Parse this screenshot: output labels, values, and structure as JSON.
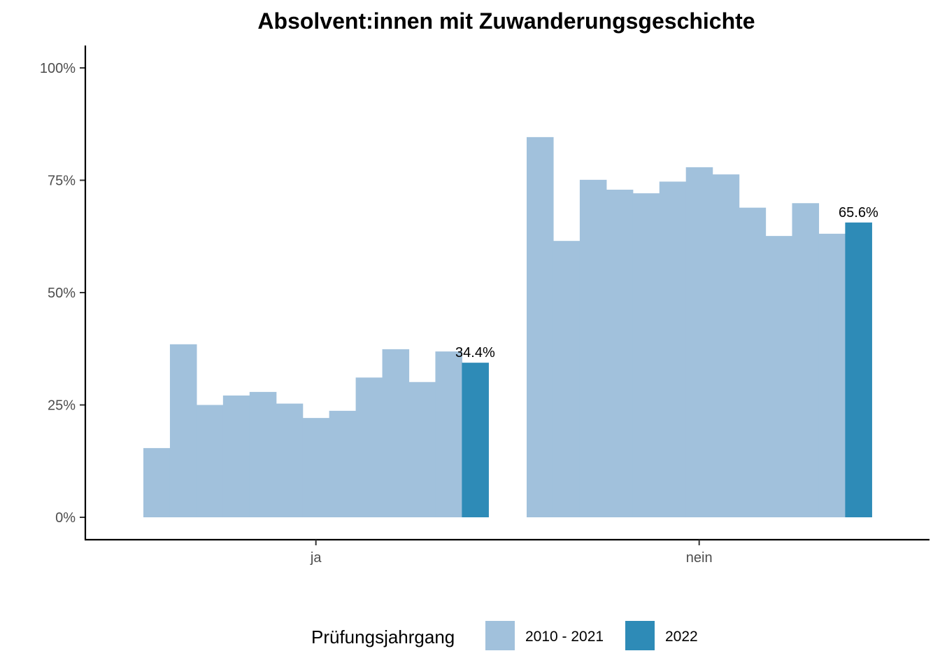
{
  "chart_data": {
    "type": "bar",
    "title": "Absolvent:innen mit Zuwanderungsgeschichte",
    "xlabel": "",
    "ylabel": "",
    "ylim": [
      0,
      100
    ],
    "y_ticks": [
      "0%",
      "25%",
      "50%",
      "75%",
      "100%"
    ],
    "y_tick_values": [
      0,
      25,
      50,
      75,
      100
    ],
    "categories": [
      "ja",
      "nein"
    ],
    "groups": [
      {
        "category": "ja",
        "history_values": [
          15.4,
          38.5,
          25.0,
          27.1,
          27.9,
          25.3,
          22.1,
          23.7,
          31.1,
          37.4,
          30.1,
          36.9
        ],
        "current_value": 34.4,
        "current_label": "34.4%"
      },
      {
        "category": "nein",
        "history_values": [
          84.6,
          61.5,
          75.1,
          72.9,
          72.1,
          74.7,
          77.9,
          76.3,
          68.9,
          62.6,
          69.9,
          63.1
        ],
        "current_value": 65.6,
        "current_label": "65.6%"
      }
    ],
    "legend": {
      "title": "Prüfungsjahrgang",
      "position": "bottom",
      "entries": [
        {
          "name": "2010 - 2021",
          "color": "#a1c1dc"
        },
        {
          "name": "2022",
          "color": "#2e8bb7"
        }
      ]
    },
    "grid": false
  }
}
